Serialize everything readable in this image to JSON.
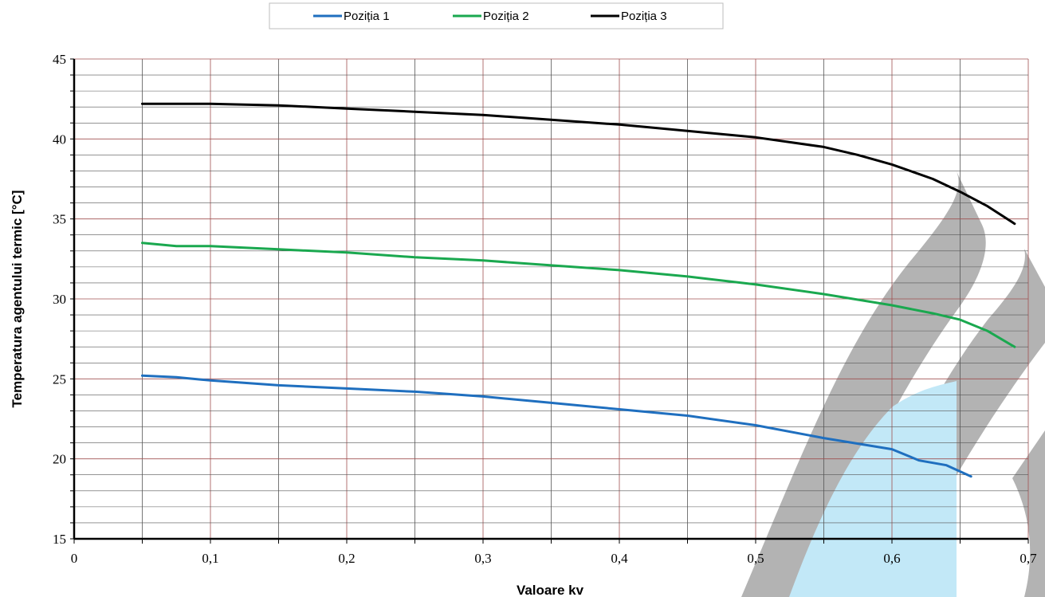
{
  "chart_data": {
    "type": "line",
    "title": "",
    "xlabel": "Valoare kv",
    "ylabel": "Temperatura agentului termic [°C]",
    "xlim": [
      0,
      0.7
    ],
    "ylim": [
      15,
      45
    ],
    "x_ticks": [
      "0",
      "0,1",
      "0,2",
      "0,3",
      "0,4",
      "0,5",
      "0,6",
      "0,7"
    ],
    "y_ticks": [
      "15",
      "20",
      "25",
      "30",
      "35",
      "40",
      "45"
    ],
    "grid": true,
    "legend_position": "top-center",
    "series": [
      {
        "name": "Poziția 1",
        "color": "#1f6fbf",
        "x": [
          0.05,
          0.075,
          0.1,
          0.15,
          0.2,
          0.25,
          0.3,
          0.35,
          0.4,
          0.45,
          0.5,
          0.55,
          0.6,
          0.62,
          0.64,
          0.658
        ],
        "y": [
          25.2,
          25.1,
          24.9,
          24.6,
          24.4,
          24.2,
          23.9,
          23.5,
          23.1,
          22.7,
          22.1,
          21.3,
          20.6,
          19.9,
          19.6,
          18.9
        ]
      },
      {
        "name": "Poziția 2",
        "color": "#1aa84f",
        "x": [
          0.05,
          0.075,
          0.1,
          0.15,
          0.2,
          0.25,
          0.3,
          0.35,
          0.4,
          0.45,
          0.5,
          0.55,
          0.6,
          0.63,
          0.65,
          0.67,
          0.69
        ],
        "y": [
          33.5,
          33.3,
          33.3,
          33.1,
          32.9,
          32.6,
          32.4,
          32.1,
          31.8,
          31.4,
          30.9,
          30.3,
          29.6,
          29.1,
          28.7,
          28.0,
          27.0
        ]
      },
      {
        "name": "Poziția 3",
        "color": "#000000",
        "x": [
          0.05,
          0.1,
          0.15,
          0.2,
          0.25,
          0.3,
          0.35,
          0.4,
          0.45,
          0.5,
          0.55,
          0.575,
          0.6,
          0.63,
          0.65,
          0.67,
          0.69
        ],
        "y": [
          42.2,
          42.2,
          42.1,
          41.9,
          41.7,
          41.5,
          41.2,
          40.9,
          40.5,
          40.1,
          39.5,
          39.0,
          38.4,
          37.5,
          36.7,
          35.8,
          34.7
        ]
      }
    ]
  }
}
